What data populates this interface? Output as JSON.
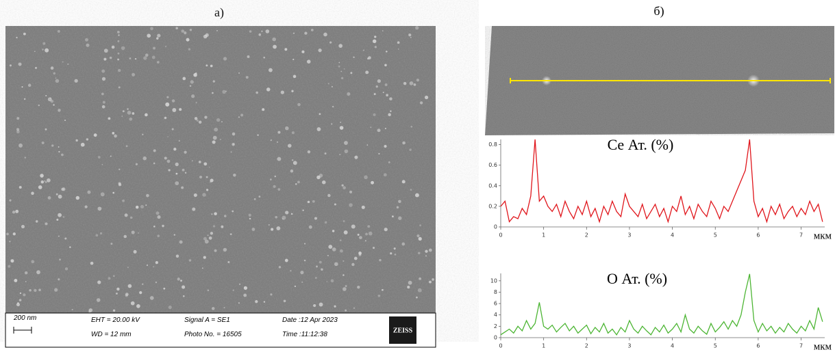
{
  "panels": {
    "left_label": "а)",
    "right_label": "б)"
  },
  "sem_info": {
    "scale_bar": "200 nm",
    "eht": "EHT = 20.00 kV",
    "wd": "WD =  12 mm",
    "signal": "Signal A = SE1",
    "photo": "Photo No. = 16505",
    "date": "Date :12 Apr 2023",
    "time": "Time :11:12:38",
    "brand": "ZEISS"
  },
  "chart_data": [
    {
      "type": "line",
      "title": "Ce Ат. (%)",
      "x_label": "мкм",
      "color": "#e0151b",
      "x": [
        0,
        0.1,
        0.2,
        0.3,
        0.4,
        0.5,
        0.6,
        0.7,
        0.8,
        0.9,
        1,
        1.1,
        1.2,
        1.3,
        1.4,
        1.5,
        1.6,
        1.7,
        1.8,
        1.9,
        2,
        2.1,
        2.2,
        2.3,
        2.4,
        2.5,
        2.6,
        2.7,
        2.8,
        2.9,
        3,
        3.1,
        3.2,
        3.3,
        3.4,
        3.5,
        3.6,
        3.7,
        3.8,
        3.9,
        4,
        4.1,
        4.2,
        4.3,
        4.4,
        4.5,
        4.6,
        4.7,
        4.8,
        4.9,
        5,
        5.1,
        5.2,
        5.3,
        5.4,
        5.5,
        5.6,
        5.7,
        5.8,
        5.9,
        6,
        6.1,
        6.2,
        6.3,
        6.4,
        6.5,
        6.6,
        6.7,
        6.8,
        6.9,
        7,
        7.1,
        7.2,
        7.3,
        7.4,
        7.5
      ],
      "values": [
        0.2,
        0.25,
        0.05,
        0.1,
        0.08,
        0.18,
        0.12,
        0.3,
        0.85,
        0.25,
        0.3,
        0.2,
        0.15,
        0.22,
        0.1,
        0.25,
        0.15,
        0.08,
        0.2,
        0.12,
        0.25,
        0.1,
        0.18,
        0.05,
        0.2,
        0.12,
        0.25,
        0.15,
        0.1,
        0.32,
        0.2,
        0.15,
        0.1,
        0.22,
        0.08,
        0.15,
        0.22,
        0.1,
        0.18,
        0.05,
        0.2,
        0.15,
        0.3,
        0.12,
        0.2,
        0.08,
        0.22,
        0.15,
        0.1,
        0.25,
        0.18,
        0.08,
        0.2,
        0.15,
        0.25,
        0.35,
        0.45,
        0.55,
        0.85,
        0.25,
        0.1,
        0.18,
        0.05,
        0.2,
        0.12,
        0.22,
        0.08,
        0.15,
        0.2,
        0.1,
        0.18,
        0.12,
        0.25,
        0.15,
        0.22,
        0.05
      ],
      "xlim": [
        0,
        7.55
      ],
      "xticks": [
        0,
        1,
        2,
        3,
        4,
        5,
        6,
        7
      ],
      "ylim": [
        0,
        0.85
      ],
      "yticks": [
        0,
        0.2,
        0.4,
        0.6,
        0.8
      ]
    },
    {
      "type": "line",
      "title": "O Ат. (%)",
      "x_label": "мкм",
      "color": "#4cb533",
      "x": [
        0,
        0.1,
        0.2,
        0.3,
        0.4,
        0.5,
        0.6,
        0.7,
        0.8,
        0.9,
        1,
        1.1,
        1.2,
        1.3,
        1.4,
        1.5,
        1.6,
        1.7,
        1.8,
        1.9,
        2,
        2.1,
        2.2,
        2.3,
        2.4,
        2.5,
        2.6,
        2.7,
        2.8,
        2.9,
        3,
        3.1,
        3.2,
        3.3,
        3.4,
        3.5,
        3.6,
        3.7,
        3.8,
        3.9,
        4,
        4.1,
        4.2,
        4.3,
        4.4,
        4.5,
        4.6,
        4.7,
        4.8,
        4.9,
        5,
        5.1,
        5.2,
        5.3,
        5.4,
        5.5,
        5.6,
        5.7,
        5.8,
        5.9,
        6,
        6.1,
        6.2,
        6.3,
        6.4,
        6.5,
        6.6,
        6.7,
        6.8,
        6.9,
        7,
        7.1,
        7.2,
        7.3,
        7.4,
        7.5
      ],
      "values": [
        0.5,
        1,
        1.5,
        0.8,
        2,
        1.2,
        3,
        1.5,
        2.5,
        6.2,
        2,
        1.5,
        2.2,
        1,
        1.8,
        2.5,
        1.2,
        2,
        0.8,
        1.5,
        2.2,
        0.7,
        1.8,
        1,
        2.5,
        0.8,
        1.5,
        0.5,
        1.8,
        1,
        3,
        1.5,
        0.8,
        2,
        1.2,
        0.5,
        1.8,
        1,
        2.2,
        0.8,
        1.5,
        2.5,
        1,
        4,
        1.5,
        0.8,
        2,
        1.2,
        0.6,
        2.5,
        1,
        1.8,
        2.8,
        1.5,
        3,
        2,
        4,
        8,
        11.2,
        3,
        1,
        2.5,
        1.2,
        2,
        0.8,
        1.8,
        1,
        2.5,
        1.5,
        0.8,
        2,
        1.2,
        3,
        1.5,
        5.3,
        2.8
      ],
      "xlim": [
        0,
        7.55
      ],
      "xticks": [
        0,
        1,
        2,
        3,
        4,
        5,
        6,
        7
      ],
      "ylim": [
        0,
        11.3
      ],
      "yticks": [
        0,
        2,
        4,
        6,
        8,
        10
      ]
    }
  ]
}
